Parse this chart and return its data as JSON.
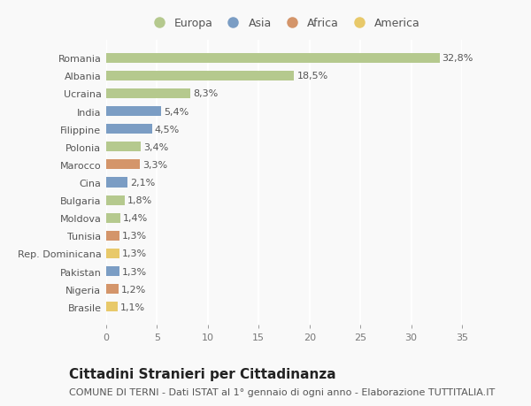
{
  "categories": [
    "Romania",
    "Albania",
    "Ucraina",
    "India",
    "Filippine",
    "Polonia",
    "Marocco",
    "Cina",
    "Bulgaria",
    "Moldova",
    "Tunisia",
    "Rep. Dominicana",
    "Pakistan",
    "Nigeria",
    "Brasile"
  ],
  "values": [
    32.8,
    18.5,
    8.3,
    5.4,
    4.5,
    3.4,
    3.3,
    2.1,
    1.8,
    1.4,
    1.3,
    1.3,
    1.3,
    1.2,
    1.1
  ],
  "labels": [
    "32,8%",
    "18,5%",
    "8,3%",
    "5,4%",
    "4,5%",
    "3,4%",
    "3,3%",
    "2,1%",
    "1,8%",
    "1,4%",
    "1,3%",
    "1,3%",
    "1,3%",
    "1,2%",
    "1,1%"
  ],
  "continents": [
    "Europa",
    "Europa",
    "Europa",
    "Asia",
    "Asia",
    "Europa",
    "Africa",
    "Asia",
    "Europa",
    "Europa",
    "Africa",
    "America",
    "Asia",
    "Africa",
    "America"
  ],
  "continent_colors": {
    "Europa": "#b5c98e",
    "Asia": "#7b9dc4",
    "Africa": "#d4956a",
    "America": "#e8c96a"
  },
  "legend_order": [
    "Europa",
    "Asia",
    "Africa",
    "America"
  ],
  "title": "Cittadini Stranieri per Cittadinanza",
  "subtitle": "COMUNE DI TERNI - Dati ISTAT al 1° gennaio di ogni anno - Elaborazione TUTTITALIA.IT",
  "xlim": [
    0,
    35
  ],
  "xticks": [
    0,
    5,
    10,
    15,
    20,
    25,
    30,
    35
  ],
  "background_color": "#f9f9f9",
  "grid_color": "#ffffff",
  "title_fontsize": 11,
  "subtitle_fontsize": 8,
  "label_fontsize": 8,
  "tick_fontsize": 8,
  "legend_fontsize": 9
}
